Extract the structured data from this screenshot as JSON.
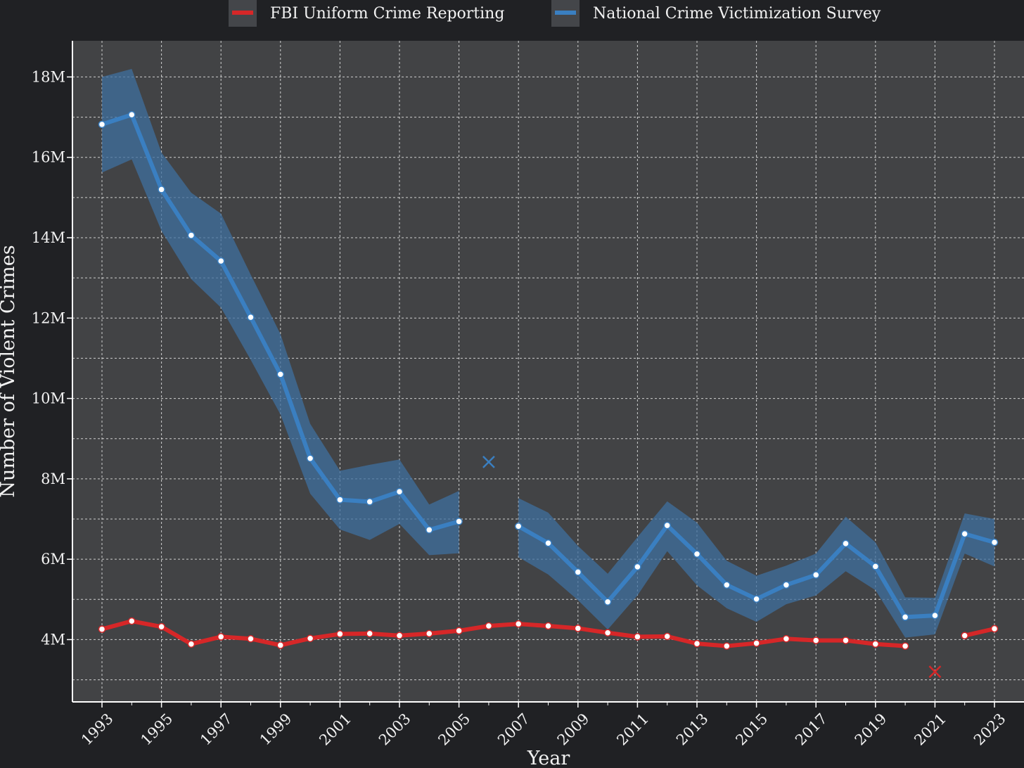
{
  "chart_data": {
    "type": "line",
    "xlabel": "Year",
    "ylabel": "Number of Violent Crimes",
    "xlim": [
      1993,
      2023
    ],
    "ylim": [
      2450000,
      18900000
    ],
    "x_ticks": [
      1993,
      1995,
      1997,
      1999,
      2001,
      2003,
      2005,
      2007,
      2009,
      2011,
      2013,
      2015,
      2017,
      2019,
      2021,
      2023
    ],
    "x_tick_labels": [
      "1993",
      "1995",
      "1997",
      "1999",
      "2001",
      "2003",
      "2005",
      "2007",
      "2009",
      "2011",
      "2013",
      "2015",
      "2017",
      "2019",
      "2021",
      "2023"
    ],
    "y_ticks": [
      4000000,
      6000000,
      8000000,
      10000000,
      12000000,
      14000000,
      16000000,
      18000000
    ],
    "y_tick_labels": [
      "4M",
      "6M",
      "8M",
      "10M",
      "12M",
      "14M",
      "16M",
      "18M"
    ],
    "grid": true,
    "legend_position": "top",
    "series": [
      {
        "name": "FBI Uniform Crime Reporting",
        "color": "#d62728",
        "segments": [
          {
            "x": [
              1993,
              1994,
              1995,
              1996,
              1997,
              1998,
              1999,
              2000,
              2001,
              2002,
              2003,
              2004,
              2005,
              2006,
              2007,
              2008,
              2009,
              2010,
              2011,
              2012,
              2013,
              2014,
              2015,
              2016,
              2017,
              2018,
              2019,
              2020
            ],
            "y": [
              4260000,
              4460000,
              4320000,
              3890000,
              4070000,
              4020000,
              3860000,
              4030000,
              4140000,
              4150000,
              4100000,
              4150000,
              4220000,
              4340000,
              4390000,
              4340000,
              4280000,
              4170000,
              4070000,
              4080000,
              3900000,
              3840000,
              3910000,
              4020000,
              3980000,
              3980000,
              3890000,
              3840000
            ]
          },
          {
            "x": [
              2022,
              2023
            ],
            "y": [
              4100000,
              4270000
            ]
          }
        ],
        "missing_markers": [
          {
            "x": 2021,
            "y": 3200000
          }
        ]
      },
      {
        "name": "National Crime Victimization Survey",
        "color": "#3a7fc1",
        "band_color": "#3f6f9f",
        "segments": [
          {
            "x": [
              1993,
              1994,
              1995,
              1996,
              1997,
              1998,
              1999,
              2000,
              2001,
              2002,
              2003,
              2004,
              2005
            ],
            "y": [
              16820000,
              17060000,
              15200000,
              14060000,
              13420000,
              12020000,
              10600000,
              8510000,
              7480000,
              7430000,
              7680000,
              6730000,
              6940000
            ],
            "lower": [
              15620000,
              15950000,
              14170000,
              12970000,
              12260000,
              10960000,
              9600000,
              7630000,
              6740000,
              6480000,
              6880000,
              6100000,
              6150000
            ],
            "upper": [
              18000000,
              18200000,
              16120000,
              15120000,
              14600000,
              13080000,
              11600000,
              9370000,
              8200000,
              8350000,
              8480000,
              7360000,
              7700000
            ]
          },
          {
            "x": [
              2007,
              2008,
              2009,
              2010,
              2011,
              2012,
              2013,
              2014,
              2015,
              2016,
              2017,
              2018,
              2019,
              2020,
              2021,
              2022,
              2023
            ],
            "y": [
              6820000,
              6400000,
              5680000,
              4940000,
              5810000,
              6840000,
              6130000,
              5360000,
              5010000,
              5360000,
              5610000,
              6390000,
              5820000,
              4560000,
              4600000,
              6630000,
              6420000
            ],
            "lower": [
              6050000,
              5620000,
              4980000,
              4250000,
              5100000,
              6200000,
              5350000,
              4780000,
              4440000,
              4880000,
              5100000,
              5700000,
              5230000,
              4050000,
              4130000,
              6140000,
              5820000
            ],
            "upper": [
              7520000,
              7160000,
              6330000,
              5640000,
              6550000,
              7440000,
              6910000,
              5960000,
              5590000,
              5840000,
              6140000,
              7060000,
              6420000,
              5050000,
              5040000,
              7140000,
              7000000
            ]
          }
        ],
        "missing_markers": [
          {
            "x": 2006,
            "y": 8420000
          }
        ]
      }
    ]
  }
}
